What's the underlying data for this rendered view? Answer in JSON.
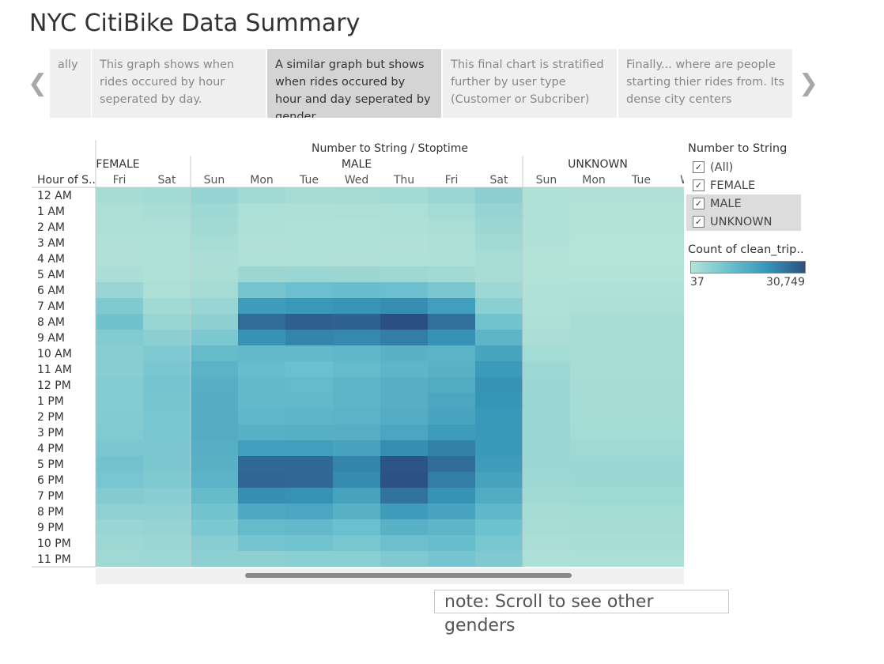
{
  "title": "NYC CitiBike Data Summary",
  "story_points": [
    {
      "label": "ally",
      "active": false
    },
    {
      "label": "This graph shows when rides occured by hour seperated by day.",
      "active": false
    },
    {
      "label": "A similar graph but shows when rides occured by hour and day seperated by gender",
      "active": true
    },
    {
      "label": "This final chart is stratified further by user type (Customer or Subcriber)",
      "active": false
    },
    {
      "label": "Finally... where are people starting thier rides from. Its dense city centers",
      "active": false
    }
  ],
  "nav": {
    "prev_icon": "chevron-left-icon",
    "next_icon": "chevron-right-icon"
  },
  "filter": {
    "title": "Number to String",
    "items": [
      {
        "label": "(All)",
        "checked": true,
        "selected": false
      },
      {
        "label": "FEMALE",
        "checked": true,
        "selected": false
      },
      {
        "label": "MALE",
        "checked": true,
        "selected": true
      },
      {
        "label": "UNKNOWN",
        "checked": true,
        "selected": true
      }
    ]
  },
  "color_legend": {
    "title": "Count of clean_trip..",
    "min_label": "37",
    "max_label": "30,749",
    "min": 37,
    "max": 30749,
    "colors": [
      "#b4e3d7",
      "#6cc0ce",
      "#3796b8",
      "#2c4f82"
    ]
  },
  "note": "note: Scroll to see other genders",
  "chart_data": {
    "type": "heatmap",
    "column_header_title": "Number to String / Stoptime",
    "row_header_title": "Hour of S..",
    "rows": [
      "12 AM",
      "1 AM",
      "2 AM",
      "3 AM",
      "4 AM",
      "5 AM",
      "6 AM",
      "7 AM",
      "8 AM",
      "9 AM",
      "10 AM",
      "11 AM",
      "12 PM",
      "1 PM",
      "2 PM",
      "3 PM",
      "4 PM",
      "5 PM",
      "6 PM",
      "7 PM",
      "8 PM",
      "9 PM",
      "10 PM",
      "11 PM"
    ],
    "groups": [
      {
        "name": "FEMALE",
        "days": [
          "Fri",
          "Sat"
        ],
        "values": [
          [
            2000,
            2600
          ],
          [
            1200,
            1600
          ],
          [
            800,
            1100
          ],
          [
            500,
            600
          ],
          [
            500,
            400
          ],
          [
            1400,
            600
          ],
          [
            4000,
            1100
          ],
          [
            7500,
            2800
          ],
          [
            9800,
            4200
          ],
          [
            7200,
            5800
          ],
          [
            6300,
            7600
          ],
          [
            6500,
            8600
          ],
          [
            6900,
            9000
          ],
          [
            6800,
            8800
          ],
          [
            7000,
            8500
          ],
          [
            7400,
            8500
          ],
          [
            8100,
            8400
          ],
          [
            9400,
            8100
          ],
          [
            8600,
            7600
          ],
          [
            7000,
            6400
          ],
          [
            5300,
            5300
          ],
          [
            4000,
            4300
          ],
          [
            3300,
            3800
          ],
          [
            2900,
            3300
          ]
        ]
      },
      {
        "name": "MALE",
        "days": [
          "Sun",
          "Mon",
          "Tue",
          "Wed",
          "Thu",
          "Fri",
          "Sat"
        ],
        "values": [
          [
            4500,
            2700,
            2200,
            2300,
            2600,
            3700,
            5800
          ],
          [
            3300,
            1200,
            1000,
            1100,
            1200,
            2300,
            4300
          ],
          [
            2800,
            800,
            700,
            700,
            800,
            1500,
            3500
          ],
          [
            1900,
            500,
            400,
            400,
            500,
            900,
            2700
          ],
          [
            1400,
            600,
            600,
            500,
            600,
            1000,
            1900
          ],
          [
            1300,
            3500,
            3700,
            3500,
            3300,
            2800,
            1900
          ],
          [
            2300,
            9000,
            10500,
            10800,
            10500,
            8200,
            3300
          ],
          [
            4000,
            19000,
            20000,
            20500,
            21500,
            18500,
            6000
          ],
          [
            5500,
            26500,
            28500,
            28000,
            30749,
            26000,
            9500
          ],
          [
            8000,
            21000,
            23000,
            22500,
            24000,
            21000,
            13000
          ],
          [
            11500,
            12000,
            12000,
            12500,
            14000,
            13500,
            17000
          ],
          [
            13500,
            11000,
            10500,
            11500,
            13000,
            14000,
            19500
          ],
          [
            14500,
            12000,
            11500,
            13000,
            14500,
            15500,
            21000
          ],
          [
            15000,
            12000,
            12000,
            13000,
            14500,
            16500,
            20500
          ],
          [
            15000,
            12500,
            13000,
            13500,
            15000,
            17000,
            20000
          ],
          [
            15000,
            14000,
            14500,
            14500,
            16500,
            19000,
            20000
          ],
          [
            14500,
            18500,
            18500,
            17500,
            21500,
            23500,
            20000
          ],
          [
            14000,
            27000,
            27000,
            23000,
            30000,
            26500,
            19000
          ],
          [
            13500,
            27500,
            27000,
            22000,
            30500,
            24000,
            17500
          ],
          [
            11500,
            21500,
            21000,
            17500,
            25500,
            21000,
            15500
          ],
          [
            9500,
            16000,
            16500,
            14000,
            19000,
            17000,
            12500
          ],
          [
            8000,
            11500,
            12000,
            10500,
            14000,
            13000,
            10000
          ],
          [
            6500,
            9000,
            9500,
            8500,
            10500,
            11000,
            8500
          ],
          [
            5500,
            5500,
            6000,
            6000,
            7500,
            9000,
            7500
          ]
        ]
      },
      {
        "name": "UNKNOWN",
        "days": [
          "Sun",
          "Mon",
          "Tue",
          "We"
        ],
        "values": [
          [
            700,
            300,
            300,
            300
          ],
          [
            550,
            200,
            200,
            200
          ],
          [
            450,
            150,
            150,
            150
          ],
          [
            300,
            100,
            100,
            100
          ],
          [
            200,
            80,
            80,
            80
          ],
          [
            200,
            200,
            200,
            200
          ],
          [
            400,
            600,
            600,
            600
          ],
          [
            700,
            1200,
            1200,
            1200
          ],
          [
            1000,
            1800,
            1800,
            1800
          ],
          [
            1400,
            1600,
            1600,
            1600
          ],
          [
            2500,
            1700,
            1700,
            1700
          ],
          [
            3200,
            1900,
            1900,
            1900
          ],
          [
            3600,
            2000,
            2000,
            2000
          ],
          [
            3800,
            2100,
            2100,
            2100
          ],
          [
            3900,
            2200,
            2200,
            2200
          ],
          [
            3900,
            2500,
            2500,
            2500
          ],
          [
            3800,
            2900,
            2900,
            2900
          ],
          [
            3500,
            3500,
            3500,
            3500
          ],
          [
            3200,
            3500,
            3500,
            3500
          ],
          [
            2700,
            3000,
            3000,
            3000
          ],
          [
            2200,
            2500,
            2500,
            2500
          ],
          [
            1800,
            2000,
            2000,
            2000
          ],
          [
            1400,
            1600,
            1600,
            1600
          ],
          [
            1000,
            1200,
            1200,
            1200
          ]
        ]
      }
    ]
  }
}
